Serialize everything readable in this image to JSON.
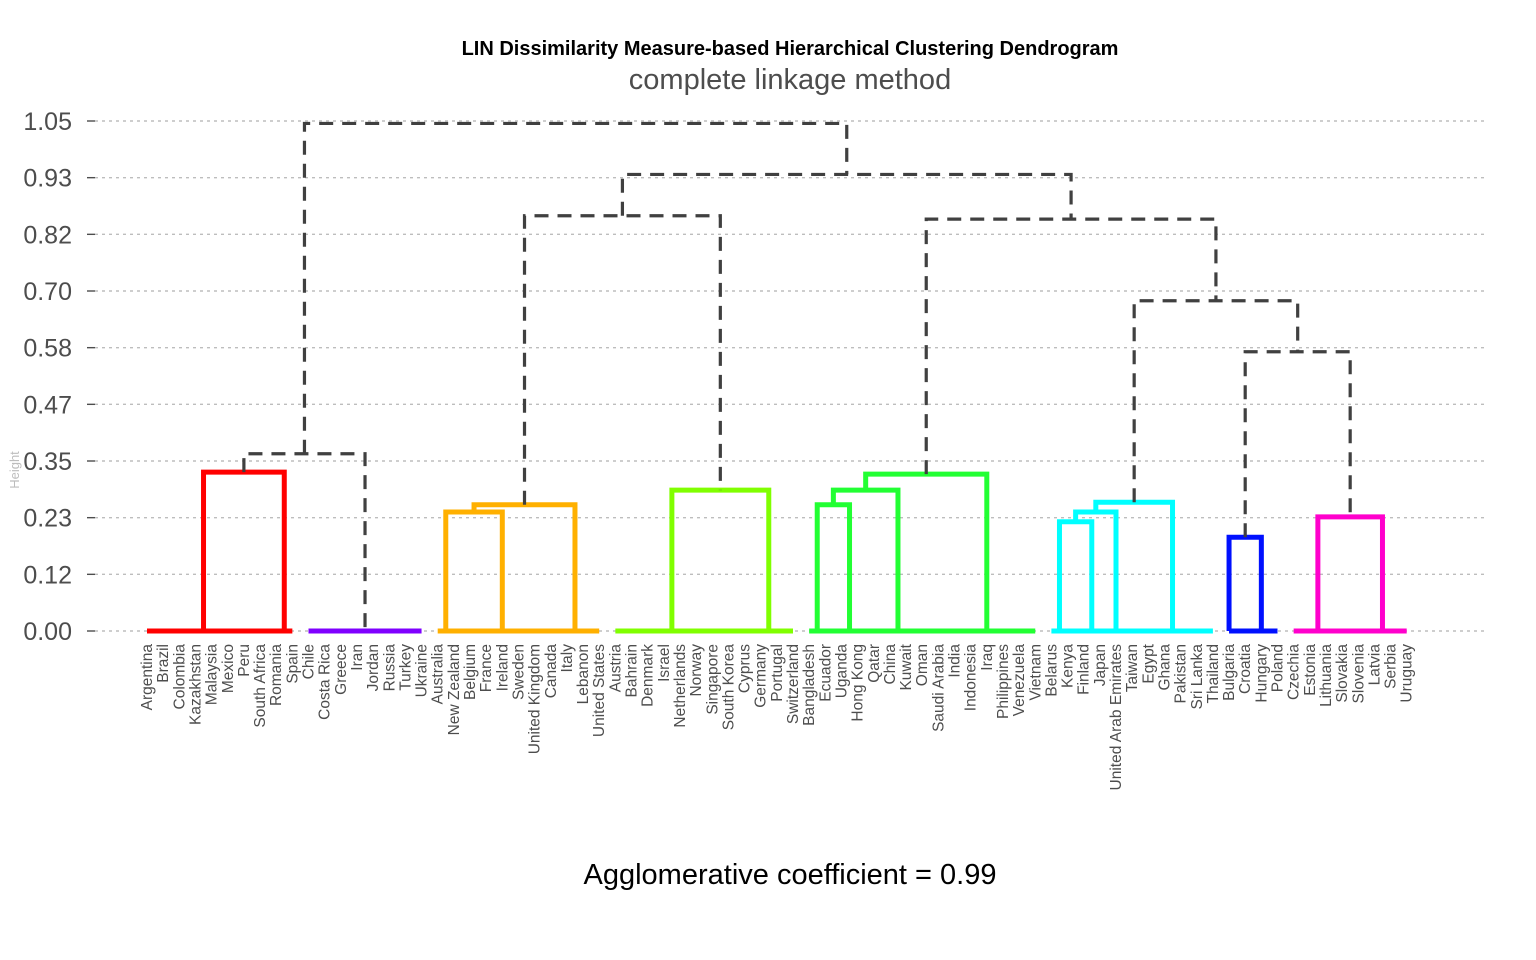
{
  "chart_data": {
    "type": "dendrogram",
    "title": "LIN Dissimilarity Measure-based Hierarchical Clustering Dendrogram",
    "subtitle": "complete linkage method",
    "ylabel": "Height",
    "caption": "Agglomerative coefficient = 0.99",
    "ylim": [
      0,
      1.05
    ],
    "yticks": [
      "0.00",
      "0.12",
      "0.23",
      "0.35",
      "0.47",
      "0.58",
      "0.70",
      "0.82",
      "0.93",
      "1.05"
    ],
    "grid": "horizontal dashed",
    "upper_link_style": "dashed",
    "upper_link_color": "#404040",
    "leaves": [
      "Argentina",
      "Brazil",
      "Colombia",
      "Kazakhstan",
      "Malaysia",
      "Mexico",
      "Peru",
      "South Africa",
      "Romania",
      "Spain",
      "Chile",
      "Costa Rica",
      "Greece",
      "Iran",
      "Jordan",
      "Russia",
      "Turkey",
      "Ukraine",
      "Australia",
      "New Zealand",
      "Belgium",
      "France",
      "Ireland",
      "Sweden",
      "United Kingdom",
      "Canada",
      "Italy",
      "Lebanon",
      "United States",
      "Austria",
      "Bahrain",
      "Denmark",
      "Israel",
      "Netherlands",
      "Norway",
      "Singapore",
      "South Korea",
      "Cyprus",
      "Germany",
      "Portugal",
      "Switzerland",
      "Bangladesh",
      "Ecuador",
      "Uganda",
      "Hong Kong",
      "Qatar",
      "China",
      "Kuwait",
      "Oman",
      "Saudi Arabia",
      "India",
      "Indonesia",
      "Iraq",
      "Philippines",
      "Venezuela",
      "Vietnam",
      "Belarus",
      "Kenya",
      "Finland",
      "Japan",
      "United Arab Emirates",
      "Taiwan",
      "Egypt",
      "Ghana",
      "Pakistan",
      "Sri Lanka",
      "Thailand",
      "Bulgaria",
      "Croatia",
      "Hungary",
      "Poland",
      "Czechia",
      "Estonia",
      "Lithuania",
      "Slovakia",
      "Slovenia",
      "Latvia",
      "Serbia",
      "Uruguay"
    ],
    "clusters": [
      {
        "color": "#ff0000",
        "first": 0,
        "last": 9
      },
      {
        "color": "#7f00ff",
        "first": 10,
        "last": 17
      },
      {
        "color": "#ffb000",
        "first": 18,
        "last": 28
      },
      {
        "color": "#80ff00",
        "first": 29,
        "last": 40
      },
      {
        "color": "#22ff33",
        "first": 41,
        "last": 55
      },
      {
        "color": "#00ffff",
        "first": 56,
        "last": 66
      },
      {
        "color": "#0010ff",
        "first": 67,
        "last": 70
      },
      {
        "color": "#ff00cc",
        "first": 71,
        "last": 78
      }
    ],
    "merges": [
      {
        "id": "m1",
        "left": {
          "leaf": 0
        },
        "right": {
          "leaf": 7
        },
        "height": 0.0
      },
      {
        "id": "m2",
        "left": {
          "leaf": 8
        },
        "right": {
          "leaf": 9
        },
        "height": 0.0
      },
      {
        "id": "m3",
        "left": {
          "node": "m1"
        },
        "right": {
          "node": "m2"
        },
        "height": 0.327,
        "color": "#ff0000"
      },
      {
        "id": "m4",
        "left": {
          "leaf": 10
        },
        "right": {
          "leaf": 17
        },
        "height": 0.0
      },
      {
        "id": "m5",
        "left": {
          "node": "m3"
        },
        "right": {
          "node": "m4"
        },
        "height": 0.365
      },
      {
        "id": "m6",
        "left": {
          "leaf": 18
        },
        "right": {
          "leaf": 19
        },
        "height": 0.0
      },
      {
        "id": "m7",
        "left": {
          "leaf": 20
        },
        "right": {
          "leaf": 24
        },
        "height": 0.0
      },
      {
        "id": "m8",
        "left": {
          "node": "m6"
        },
        "right": {
          "node": "m7"
        },
        "height": 0.245,
        "color": "#ffb000"
      },
      {
        "id": "m9",
        "left": {
          "leaf": 25
        },
        "right": {
          "leaf": 28
        },
        "height": 0.0
      },
      {
        "id": "m10",
        "left": {
          "node": "m8"
        },
        "right": {
          "node": "m9"
        },
        "height": 0.26,
        "color": "#ffb000"
      },
      {
        "id": "m11",
        "left": {
          "leaf": 29
        },
        "right": {
          "leaf": 36
        },
        "height": 0.0
      },
      {
        "id": "m12",
        "left": {
          "leaf": 37
        },
        "right": {
          "leaf": 40
        },
        "height": 0.0
      },
      {
        "id": "m13",
        "left": {
          "node": "m11"
        },
        "right": {
          "node": "m12"
        },
        "height": 0.29,
        "color": "#80ff00"
      },
      {
        "id": "m14",
        "left": {
          "node": "m10"
        },
        "right": {
          "node": "m13"
        },
        "height": 0.855
      },
      {
        "id": "m15",
        "left": {
          "leaf": 41
        },
        "right": {
          "leaf": 42
        },
        "height": 0.0
      },
      {
        "id": "m16",
        "left": {
          "leaf": 43
        },
        "right": {
          "leaf": 44
        },
        "height": 0.0
      },
      {
        "id": "m17",
        "left": {
          "node": "m15"
        },
        "right": {
          "node": "m16"
        },
        "height": 0.26,
        "color": "#22ff33"
      },
      {
        "id": "m18",
        "left": {
          "leaf": 45
        },
        "right": {
          "leaf": 48
        },
        "height": 0.0
      },
      {
        "id": "m19",
        "left": {
          "node": "m17"
        },
        "right": {
          "node": "m18"
        },
        "height": 0.29,
        "color": "#22ff33"
      },
      {
        "id": "m20",
        "left": {
          "leaf": 49
        },
        "right": {
          "leaf": 55
        },
        "height": 0.0
      },
      {
        "id": "m21",
        "left": {
          "node": "m19"
        },
        "right": {
          "node": "m20"
        },
        "height": 0.323,
        "color": "#22ff33"
      },
      {
        "id": "m22",
        "left": {
          "leaf": 56
        },
        "right": {
          "leaf": 57
        },
        "height": 0.0
      },
      {
        "id": "m23",
        "left": {
          "leaf": 58
        },
        "right": {
          "leaf": 59
        },
        "height": 0.0
      },
      {
        "id": "m24",
        "left": {
          "node": "m22"
        },
        "right": {
          "node": "m23"
        },
        "height": 0.225,
        "color": "#00ffff"
      },
      {
        "id": "m25",
        "left": {
          "node": "m24"
        },
        "right": {
          "leaf": 60
        },
        "height": 0.245,
        "color": "#00ffff"
      },
      {
        "id": "m26",
        "left": {
          "leaf": 61
        },
        "right": {
          "leaf": 66
        },
        "height": 0.0
      },
      {
        "id": "m27",
        "left": {
          "node": "m25"
        },
        "right": {
          "node": "m26"
        },
        "height": 0.265,
        "color": "#00ffff"
      },
      {
        "id": "m28",
        "left": {
          "leaf": 68
        },
        "right": {
          "leaf": 70
        },
        "height": 0.0
      },
      {
        "id": "m29",
        "left": {
          "leaf": 67
        },
        "right": {
          "node": "m28"
        },
        "height": 0.193,
        "color": "#0010ff"
      },
      {
        "id": "m30",
        "left": {
          "leaf": 71
        },
        "right": {
          "leaf": 74
        },
        "height": 0.0
      },
      {
        "id": "m31",
        "left": {
          "leaf": 75
        },
        "right": {
          "leaf": 78
        },
        "height": 0.0
      },
      {
        "id": "m32",
        "left": {
          "node": "m30"
        },
        "right": {
          "node": "m31"
        },
        "height": 0.235,
        "color": "#ff00cc"
      },
      {
        "id": "m33",
        "left": {
          "node": "m29"
        },
        "right": {
          "node": "m32"
        },
        "height": 0.575
      },
      {
        "id": "m34",
        "left": {
          "node": "m27"
        },
        "right": {
          "node": "m33"
        },
        "height": 0.68
      },
      {
        "id": "m35",
        "left": {
          "node": "m21"
        },
        "right": {
          "node": "m34"
        },
        "height": 0.848
      },
      {
        "id": "m36",
        "left": {
          "node": "m14"
        },
        "right": {
          "node": "m35"
        },
        "height": 0.94
      },
      {
        "id": "m37",
        "left": {
          "node": "m5"
        },
        "right": {
          "node": "m36"
        },
        "height": 1.045
      }
    ]
  }
}
